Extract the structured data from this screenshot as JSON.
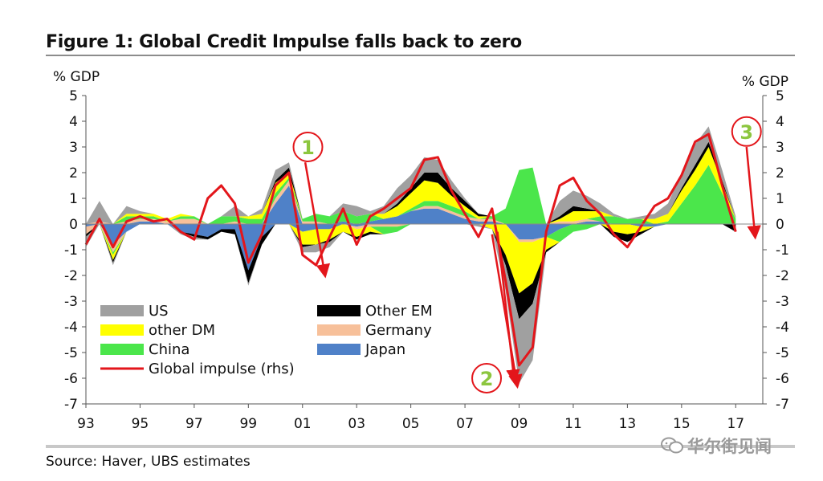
{
  "title": "Figure 1: Global Credit Impulse falls back to zero",
  "source": "Source:  Haver, UBS estimates",
  "watermark": "华尔街见闻",
  "chart_data": {
    "type": "area",
    "stacked": true,
    "ylabel_left": "% GDP",
    "ylabel_right": "% GDP",
    "ylim": [
      -7,
      5
    ],
    "yticks": [
      5,
      4,
      3,
      2,
      1,
      0,
      -1,
      -2,
      -3,
      -4,
      -5,
      -6,
      -7
    ],
    "xlim": [
      1993,
      2018
    ],
    "xtick_labels": [
      "93",
      "95",
      "97",
      "99",
      "01",
      "03",
      "05",
      "07",
      "09",
      "11",
      "13",
      "15",
      "17"
    ],
    "x": [
      1993.0,
      1993.5,
      1994.0,
      1994.5,
      1995.0,
      1995.5,
      1996.0,
      1996.5,
      1997.0,
      1997.5,
      1998.0,
      1998.5,
      1999.0,
      1999.5,
      2000.0,
      2000.5,
      2001.0,
      2001.5,
      2002.0,
      2002.5,
      2003.0,
      2003.5,
      2004.0,
      2004.5,
      2005.0,
      2005.5,
      2006.0,
      2006.5,
      2007.0,
      2007.5,
      2008.0,
      2008.5,
      2009.0,
      2009.5,
      2010.0,
      2010.5,
      2011.0,
      2011.5,
      2012.0,
      2012.5,
      2013.0,
      2013.5,
      2014.0,
      2014.5,
      2015.0,
      2015.5,
      2016.0,
      2016.5,
      2017.0
    ],
    "series": [
      {
        "name": "Japan",
        "color": "#4f81c8",
        "values": [
          -0.1,
          0.0,
          -0.8,
          -0.3,
          0.1,
          0.1,
          0.0,
          -0.3,
          -0.4,
          -0.5,
          -0.2,
          -0.2,
          -1.8,
          -0.5,
          0.8,
          1.5,
          -0.3,
          -0.2,
          -0.2,
          0.1,
          -0.1,
          0.1,
          0.2,
          0.3,
          0.5,
          0.6,
          0.6,
          0.4,
          0.2,
          0.1,
          0.1,
          0.0,
          -0.6,
          -0.6,
          -0.5,
          -0.2,
          0.0,
          0.1,
          0.1,
          0.0,
          0.0,
          -0.1,
          -0.1,
          0.0,
          0.0,
          0.0,
          0.0,
          0.0,
          0.0
        ]
      },
      {
        "name": "Germany",
        "color": "#f7c09a",
        "values": [
          -0.3,
          0.1,
          -0.3,
          0.1,
          0.1,
          0.1,
          0.1,
          0.2,
          0.2,
          0.0,
          0.0,
          0.1,
          0.0,
          0.0,
          0.2,
          0.2,
          0.1,
          0.1,
          0.0,
          0.0,
          -0.1,
          -0.1,
          -0.1,
          -0.1,
          0.0,
          0.1,
          0.1,
          0.1,
          0.1,
          0.1,
          0.1,
          0.0,
          -0.1,
          -0.1,
          0.0,
          0.1,
          0.1,
          0.1,
          0.0,
          0.0,
          0.0,
          0.0,
          0.0,
          0.0,
          0.0,
          0.0,
          0.0,
          0.0,
          0.0
        ]
      },
      {
        "name": "China",
        "color": "#4be64b",
        "values": [
          0.0,
          0.0,
          -0.1,
          0.2,
          0.1,
          0.1,
          0.0,
          0.1,
          0.1,
          0.0,
          0.3,
          0.2,
          0.2,
          0.2,
          0.2,
          0.1,
          0.1,
          0.3,
          0.3,
          0.4,
          0.3,
          0.3,
          -0.3,
          -0.2,
          0.1,
          0.2,
          0.2,
          0.2,
          0.2,
          0.0,
          0.1,
          0.6,
          2.1,
          2.2,
          0.0,
          -0.5,
          -0.3,
          -0.2,
          0.2,
          0.3,
          0.2,
          0.2,
          0.0,
          0.1,
          0.8,
          1.5,
          2.3,
          1.2,
          0.2
        ]
      },
      {
        "name": "other DM",
        "color": "#ffff00",
        "values": [
          0.0,
          0.0,
          -0.2,
          0.1,
          0.1,
          0.1,
          0.1,
          0.1,
          0.0,
          0.0,
          0.0,
          0.0,
          0.1,
          0.2,
          0.4,
          0.2,
          -0.5,
          -0.6,
          -0.4,
          -0.3,
          -0.3,
          -0.2,
          0.2,
          0.4,
          0.6,
          0.8,
          0.7,
          0.4,
          0.2,
          0.1,
          -0.2,
          -1.2,
          -2.0,
          -1.6,
          -0.5,
          0.1,
          0.4,
          0.3,
          0.2,
          -0.3,
          -0.4,
          -0.2,
          0.2,
          0.3,
          0.5,
          0.6,
          0.7,
          0.4,
          0.0
        ]
      },
      {
        "name": "Other EM",
        "color": "#000000",
        "values": [
          -0.1,
          0.0,
          -0.1,
          0.0,
          0.0,
          0.0,
          0.0,
          0.0,
          -0.1,
          -0.1,
          -0.1,
          -0.2,
          -0.5,
          -0.3,
          0.1,
          0.2,
          -0.1,
          0.0,
          -0.1,
          0.0,
          -0.1,
          -0.1,
          0.0,
          0.1,
          0.2,
          0.3,
          0.4,
          0.3,
          0.2,
          0.1,
          0.0,
          -0.4,
          -1.0,
          -0.8,
          -0.1,
          0.1,
          0.2,
          0.1,
          0.0,
          -0.2,
          -0.3,
          -0.1,
          0.0,
          0.0,
          0.1,
          0.2,
          0.2,
          0.1,
          -0.3
        ]
      },
      {
        "name": "US",
        "color": "#a0a0a0",
        "values": [
          -0.4,
          0.8,
          -0.1,
          0.3,
          0.1,
          0.0,
          0.0,
          -0.1,
          -0.1,
          0.0,
          0.0,
          0.4,
          -0.1,
          0.2,
          0.4,
          0.2,
          -0.2,
          -0.3,
          -0.2,
          0.3,
          0.4,
          0.1,
          0.3,
          0.6,
          0.5,
          0.6,
          0.5,
          0.3,
          0.1,
          -0.1,
          0.0,
          -1.0,
          -2.5,
          -2.2,
          0.0,
          0.6,
          0.6,
          0.5,
          0.3,
          0.1,
          0.0,
          0.1,
          0.2,
          0.4,
          0.6,
          0.8,
          0.6,
          0.4,
          0.1
        ]
      }
    ],
    "global_impulse": {
      "name": "Global impulse (rhs)",
      "color": "#e3161b",
      "values": [
        -0.8,
        0.2,
        -0.9,
        0.1,
        0.3,
        0.1,
        0.2,
        -0.3,
        -0.6,
        1.0,
        1.5,
        0.8,
        -1.5,
        -0.4,
        1.5,
        2.0,
        -1.2,
        -1.6,
        -0.5,
        0.6,
        -0.8,
        0.3,
        0.6,
        1.0,
        1.4,
        2.5,
        2.6,
        1.3,
        0.4,
        -0.5,
        0.6,
        -2.2,
        -5.5,
        -4.8,
        -0.3,
        1.5,
        1.8,
        0.9,
        0.4,
        -0.4,
        -0.9,
        -0.1,
        0.7,
        1.0,
        1.9,
        3.2,
        3.5,
        1.5,
        -0.3
      ]
    },
    "annotations": [
      {
        "label": "1",
        "x": 2001.2,
        "y": 3.0
      },
      {
        "label": "2",
        "x": 2007.8,
        "y": -6.0
      },
      {
        "label": "3",
        "x": 2017.4,
        "y": 3.6
      }
    ],
    "legend": [
      {
        "label": "US",
        "color": "#a0a0a0",
        "kind": "area"
      },
      {
        "label": "other DM",
        "color": "#ffff00",
        "kind": "area"
      },
      {
        "label": "China",
        "color": "#4be64b",
        "kind": "area"
      },
      {
        "label": "Global impulse (rhs)",
        "color": "#e3161b",
        "kind": "line"
      },
      {
        "label": "Other EM",
        "color": "#000000",
        "kind": "area"
      },
      {
        "label": "Germany",
        "color": "#f7c09a",
        "kind": "area"
      },
      {
        "label": "Japan",
        "color": "#4f81c8",
        "kind": "area"
      }
    ]
  }
}
